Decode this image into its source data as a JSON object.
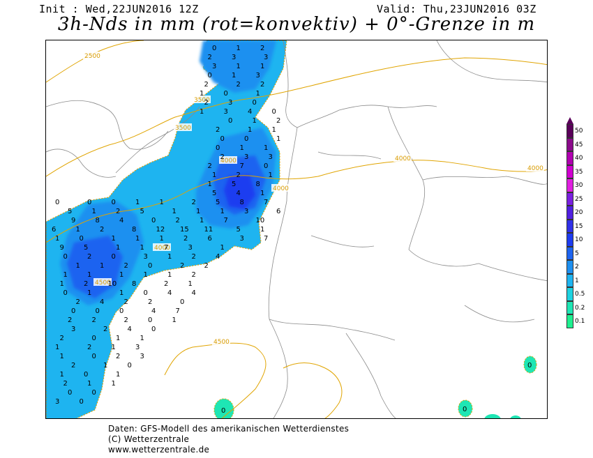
{
  "header": {
    "init": "Init : Wed,22JUN2016 12Z",
    "valid": "Valid: Thu,23JUN2016 03Z",
    "title": "3h-Nds in mm (rot=konvektiv) + 0°-Grenze in m"
  },
  "legend": {
    "levels": [
      "50",
      "45",
      "40",
      "35",
      "30",
      "25",
      "20",
      "15",
      "10",
      "5",
      "2",
      "1",
      "0.5",
      "0.2",
      "0.1"
    ],
    "colors": [
      "#5a005a",
      "#8b0a8b",
      "#b000b0",
      "#d000d0",
      "#e020e0",
      "#7a20e0",
      "#5020e0",
      "#3030e8",
      "#1e3cf0",
      "#1e64f0",
      "#1e90f0",
      "#1eb4f0",
      "#1ed2e0",
      "#1ee6b4",
      "#1ef090"
    ]
  },
  "isolines": {
    "labels": [
      "2500",
      "3500",
      "3500",
      "4000",
      "4000",
      "4000",
      "4000",
      "4000",
      "4500",
      "4500"
    ],
    "color": "#e0a400"
  },
  "precip_values": [
    "0",
    "1",
    "2",
    "2",
    "3",
    "3",
    "3",
    "1",
    "1",
    "0",
    "1",
    "3",
    "2",
    "2",
    "2",
    "1",
    "0",
    "1",
    "2",
    "3",
    "0",
    "1",
    "3",
    "4",
    "0",
    "0",
    "1",
    "2",
    "2",
    "1",
    "1",
    "0",
    "0",
    "1",
    "0",
    "1",
    "1",
    "2",
    "3",
    "3",
    "2",
    "7",
    "0",
    "1",
    "2",
    "1",
    "1",
    "5",
    "8",
    "5",
    "4",
    "1",
    "0",
    "0",
    "0",
    "1",
    "1",
    "2",
    "5",
    "8",
    "7",
    "5",
    "1",
    "2",
    "5",
    "1",
    "1",
    "1",
    "3",
    "6",
    "9",
    "8",
    "4",
    "0",
    "2",
    "1",
    "7",
    "10",
    "6",
    "1",
    "2",
    "8",
    "12",
    "15",
    "11",
    "5",
    "1",
    "1",
    "0",
    "1",
    "1",
    "1",
    "2",
    "6",
    "3",
    "7",
    "9",
    "5",
    "1",
    "1",
    "7",
    "3",
    "1",
    "0",
    "2",
    "0",
    "3",
    "1",
    "2",
    "4",
    "1",
    "1",
    "2",
    "0",
    "2",
    "2",
    "1",
    "1",
    "1",
    "1",
    "1",
    "2",
    "1",
    "2",
    "10",
    "8",
    "2",
    "1",
    "0",
    "1",
    "1",
    "0",
    "4",
    "4",
    "2",
    "4",
    "2",
    "2",
    "0",
    "0",
    "0",
    "0",
    "4",
    "7",
    "2",
    "2",
    "2",
    "0",
    "1",
    "3",
    "2",
    "4",
    "0",
    "2",
    "0",
    "1",
    "1",
    "1",
    "2",
    "1",
    "3",
    "1",
    "0",
    "2",
    "3",
    "2",
    "1",
    "0",
    "1",
    "0",
    "1",
    "2",
    "1",
    "1",
    "0",
    "0",
    "3",
    "0"
  ],
  "footer": {
    "line1": "Daten: GFS-Modell des amerikanischen Wetterdienstes",
    "line2": "(C) Wetterzentrale",
    "line3": "www.wetterzentrale.de"
  }
}
